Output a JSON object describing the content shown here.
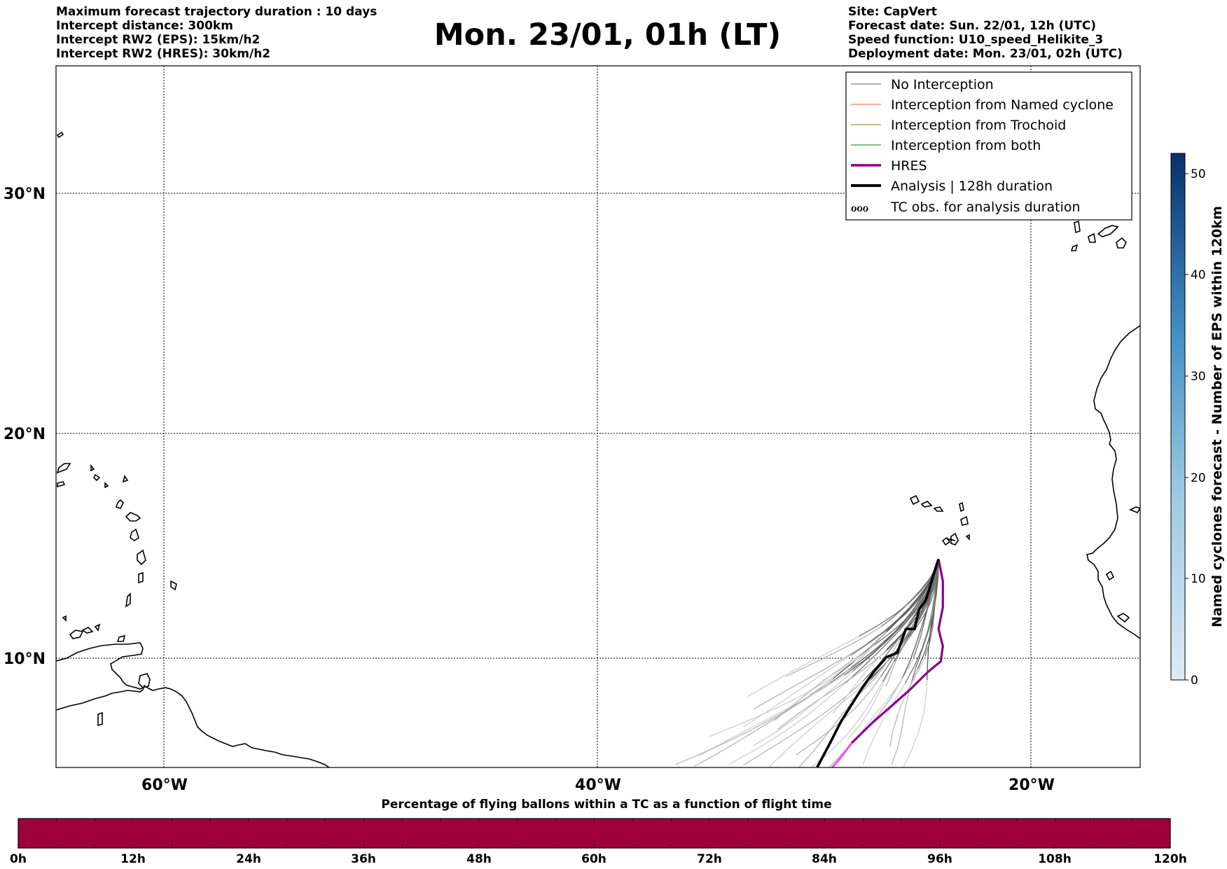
{
  "header": {
    "left_lines": [
      "Maximum forecast trajectory duration : 10 days",
      "Intercept distance: 300km",
      "Intercept RW2 (EPS):  15km/h2",
      "Intercept RW2 (HRES): 30km/h2"
    ],
    "right_lines": [
      "Site: CapVert",
      "Forecast date: Sun. 22/01, 12h (UTC)",
      "Speed function: U10_speed_Helikite_3",
      "Deployment date: Mon. 23/01, 02h (UTC)"
    ],
    "title": "Mon. 23/01, 01h (LT)"
  },
  "map": {
    "lat_labels": [
      "30°N",
      "20°N",
      "10°N"
    ],
    "lon_labels": [
      "60°W",
      "40°W",
      "20°W"
    ],
    "grid": true,
    "extent": {
      "lon_min": -65,
      "lon_max": -15,
      "lat_min": 5.15,
      "lat_max": 35.65
    }
  },
  "legend": {
    "placement": "top-right",
    "items": [
      {
        "label": "No Interception",
        "color": "#808080",
        "style": "thin"
      },
      {
        "label": "Interception from Named cyclone",
        "color": "#ff7f50",
        "style": "thin"
      },
      {
        "label": "Interception from Trochoid",
        "color": "#a09040",
        "style": "thin"
      },
      {
        "label": "Interception from both",
        "color": "#3a9a3a",
        "style": "thin"
      },
      {
        "label": "HRES",
        "color": "#8b008b",
        "style": "thick"
      },
      {
        "label": "Analysis | 128h duration",
        "color": "#000000",
        "style": "thick"
      },
      {
        "label": "TC obs. for analysis duration",
        "color": "#000000",
        "style": "symbol"
      }
    ]
  },
  "colorbar_right": {
    "label": "Named cyclones forecast - Number of EPS within 120km",
    "ticks": [
      "0",
      "10",
      "20",
      "30",
      "40",
      "50"
    ],
    "min": 0,
    "max": 52,
    "color_low": "#deebf7",
    "color_high": "#08306b"
  },
  "colorbar_bottom": {
    "title": "Percentage of flying ballons within a TC as a function of flight time",
    "ticks": [
      "0h",
      "12h",
      "24h",
      "36h",
      "48h",
      "60h",
      "72h",
      "84h",
      "96h",
      "108h",
      "120h"
    ],
    "fill_color": "#9e003a"
  },
  "tracks": {
    "origin": [
      -24.3,
      14.8
    ],
    "analysis": [
      [
        -24.3,
        14.8
      ],
      [
        -24.5,
        14.2
      ],
      [
        -24.7,
        13.5
      ],
      [
        -24.9,
        12.9
      ],
      [
        -25.2,
        12.5
      ],
      [
        -25.4,
        11.6
      ],
      [
        -25.8,
        11.6
      ],
      [
        -26.2,
        10.5
      ],
      [
        -26.7,
        10.3
      ],
      [
        -27.3,
        9.6
      ],
      [
        -27.8,
        8.9
      ],
      [
        -28.3,
        8.1
      ],
      [
        -28.8,
        7.3
      ],
      [
        -29.3,
        6.3
      ],
      [
        -29.9,
        5.15
      ]
    ],
    "hres": [
      [
        -24.3,
        14.8
      ],
      [
        -24.1,
        13.8
      ],
      [
        -24.1,
        12.6
      ],
      [
        -24.3,
        11.6
      ],
      [
        -24.1,
        10.8
      ],
      [
        -24.2,
        10.1
      ],
      [
        -24.8,
        9.6
      ],
      [
        -25.6,
        8.8
      ],
      [
        -26.5,
        8.0
      ],
      [
        -27.4,
        7.2
      ],
      [
        -28.3,
        6.3
      ]
    ],
    "hres_tail": [
      [
        -28.3,
        6.3
      ],
      [
        -28.9,
        5.5
      ],
      [
        -29.2,
        5.15
      ]
    ],
    "ensemble_endpoints": [
      [
        -35.8,
        5.15
      ],
      [
        -34.2,
        5.15
      ],
      [
        -33.0,
        5.15
      ],
      [
        -32.0,
        5.15
      ],
      [
        -31.2,
        5.15
      ],
      [
        -30.4,
        5.15
      ],
      [
        -29.0,
        5.15
      ],
      [
        -27.8,
        5.15
      ],
      [
        -26.8,
        5.15
      ],
      [
        -25.8,
        5.15
      ],
      [
        -32.5,
        8.0
      ],
      [
        -33.5,
        7.2
      ],
      [
        -30.5,
        8.6
      ],
      [
        -34.6,
        6.5
      ],
      [
        -31.5,
        6.8
      ],
      [
        -29.5,
        7.6
      ],
      [
        -28.5,
        8.3
      ],
      [
        -27.5,
        7.0
      ],
      [
        -26.5,
        6.2
      ],
      [
        -33.2,
        6.1
      ],
      [
        -30.8,
        5.6
      ],
      [
        -35.0,
        5.6
      ],
      [
        -32.0,
        7.4
      ],
      [
        -28.8,
        6.6
      ],
      [
        -36.2,
        5.4
      ],
      [
        -26.0,
        7.3
      ],
      [
        -27.0,
        8.8
      ],
      [
        -29.8,
        9.1
      ],
      [
        -31.0,
        9.4
      ],
      [
        -33.0,
        8.6
      ]
    ]
  }
}
